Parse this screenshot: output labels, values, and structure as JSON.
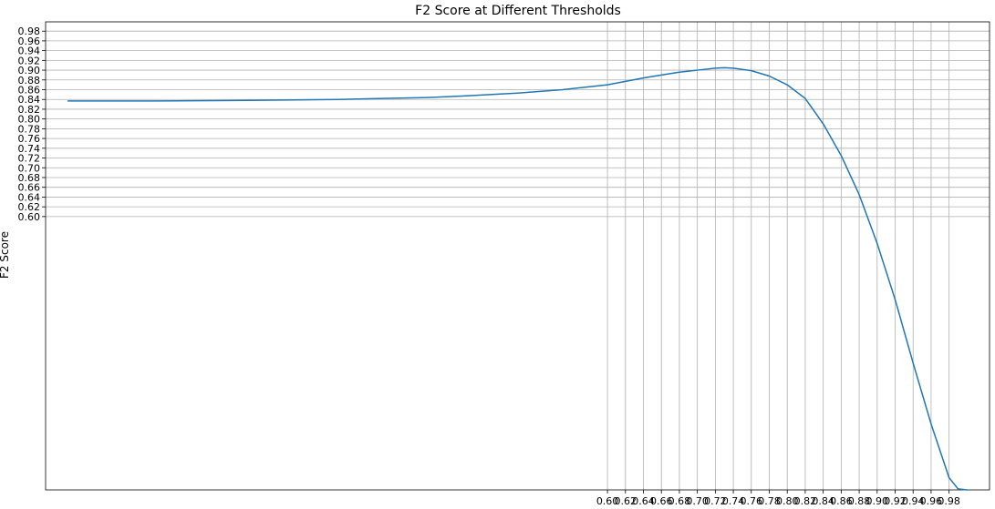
{
  "chart_data": {
    "type": "line",
    "title": "F2 Score at Different Thresholds",
    "xlabel": "",
    "ylabel": "F2 Score",
    "xlim": [
      -0.025,
      1.025
    ],
    "ylim": [
      0.04,
      0.999
    ],
    "grid": true,
    "xticks": [
      0.6,
      0.62,
      0.64,
      0.66,
      0.68,
      0.7,
      0.72,
      0.74,
      0.76,
      0.78,
      0.8,
      0.82,
      0.84,
      0.86,
      0.88,
      0.9,
      0.92,
      0.94,
      0.96,
      0.98
    ],
    "xtick_labels": [
      "0.60",
      "0.62",
      "0.64",
      "0.66",
      "0.68",
      "0.70",
      "0.72",
      "0.74",
      "0.76",
      "0.78",
      "0.80",
      "0.82",
      "0.84",
      "0.86",
      "0.88",
      "0.90",
      "0.92",
      "0.94",
      "0.96",
      "0.98"
    ],
    "yticks": [
      0.6,
      0.62,
      0.64,
      0.66,
      0.68,
      0.7,
      0.72,
      0.74,
      0.76,
      0.78,
      0.8,
      0.82,
      0.84,
      0.86,
      0.88,
      0.9,
      0.92,
      0.94,
      0.96,
      0.98
    ],
    "ytick_labels": [
      "0.60",
      "0.62",
      "0.64",
      "0.66",
      "0.68",
      "0.70",
      "0.72",
      "0.74",
      "0.76",
      "0.78",
      "0.80",
      "0.82",
      "0.84",
      "0.86",
      "0.88",
      "0.90",
      "0.92",
      "0.94",
      "0.96",
      "0.98"
    ],
    "series": [
      {
        "color": "#1f77b4",
        "x": [
          0.0,
          0.1,
          0.2,
          0.3,
          0.35,
          0.4,
          0.45,
          0.5,
          0.55,
          0.6,
          0.62,
          0.64,
          0.66,
          0.68,
          0.7,
          0.72,
          0.73,
          0.74,
          0.76,
          0.78,
          0.8,
          0.82,
          0.84,
          0.86,
          0.88,
          0.9,
          0.92,
          0.94,
          0.96,
          0.98,
          0.99,
          1.0
        ],
        "y": [
          0.837,
          0.837,
          0.838,
          0.84,
          0.842,
          0.844,
          0.848,
          0.853,
          0.86,
          0.87,
          0.877,
          0.884,
          0.89,
          0.896,
          0.9,
          0.904,
          0.905,
          0.904,
          0.899,
          0.888,
          0.87,
          0.842,
          0.79,
          0.725,
          0.645,
          0.545,
          0.43,
          0.3,
          0.175,
          0.065,
          0.042,
          0.04
        ]
      }
    ]
  }
}
